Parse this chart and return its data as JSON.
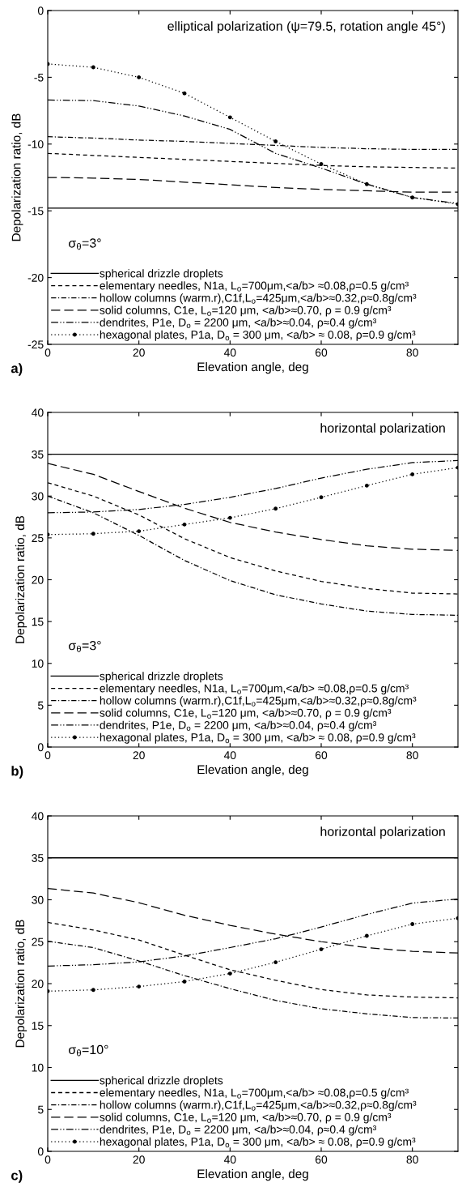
{
  "chart_data": [
    {
      "type": "line",
      "xlabel": "Elevation angle, deg",
      "ylabel": "Depolarization ratio, dB",
      "xlim": [
        0,
        90
      ],
      "ylim": [
        -25,
        0
      ],
      "xticks": [
        0,
        20,
        40,
        60,
        80
      ],
      "yticks": [
        -25,
        -20,
        -15,
        -10,
        -5,
        0
      ],
      "grid": false,
      "legend": "bottom left",
      "annotations": [
        "elliptical polarization (ψ=79.5, rotation angle 45°)",
        "σ$_{θ}$=3°",
        "a)"
      ],
      "x": [
        0,
        10,
        20,
        30,
        40,
        50,
        60,
        70,
        80,
        90
      ],
      "series": [
        {
          "name": "spherical drizzle droplets",
          "color": "#000000",
          "line_style": "solid",
          "marker": "none",
          "values": [
            -14.8,
            -14.8,
            -14.8,
            -14.8,
            -14.8,
            -14.8,
            -14.8,
            -14.8,
            -14.8,
            -14.8
          ]
        },
        {
          "name": "elementary needles, N1a, L$_{o}$=700μm,<a/b> ≈0.08,ρ=0.5 g/cm³",
          "color": "#000000",
          "line_style": "dashed",
          "marker": "none",
          "values": [
            -10.7,
            -10.85,
            -11.0,
            -11.15,
            -11.3,
            -11.45,
            -11.6,
            -11.7,
            -11.75,
            -11.8
          ]
        },
        {
          "name": "hollow columns (warm.r),C1f,L$_{o}$=425μm,<a/b>≈0.32,ρ≈0.8g/cm³",
          "color": "#000000",
          "line_style": "dashdot",
          "marker": "none",
          "values": [
            -9.45,
            -9.55,
            -9.7,
            -9.8,
            -9.95,
            -10.1,
            -10.25,
            -10.35,
            -10.4,
            -10.4
          ]
        },
        {
          "name": "solid columns, C1e, L$_{o}$=120 μm, <a/b>≈0.70, ρ = 0.9 g/cm³",
          "color": "#000000",
          "line_style": "longdash",
          "marker": "none",
          "values": [
            -12.5,
            -12.55,
            -12.65,
            -12.85,
            -13.05,
            -13.25,
            -13.4,
            -13.5,
            -13.6,
            -13.6
          ]
        },
        {
          "name": "dendrites, P1e, D$_{o}$ = 2200 μm, <a/b>≈0.04, ρ≈0.4 g/cm³",
          "color": "#000000",
          "line_style": "dashdotdot",
          "marker": "none",
          "values": [
            -6.7,
            -6.75,
            -7.15,
            -7.9,
            -8.9,
            -10.7,
            -11.8,
            -13.0,
            -14.0,
            -14.45
          ]
        },
        {
          "name": "hexagonal plates, P1a, D$_{o}$ = 300 μm, <a/b> ≈ 0.08, ρ=0.9 g/cm³",
          "color": "#000000",
          "line_style": "dotted",
          "marker": "circle",
          "values": [
            -4.0,
            -4.25,
            -5.0,
            -6.2,
            -8.0,
            -9.8,
            -11.5,
            -13.0,
            -14.0,
            -14.5
          ]
        }
      ]
    },
    {
      "type": "line",
      "xlabel": "Elevation angle, deg",
      "ylabel": "Depolarization ratio, dB",
      "xlim": [
        0,
        90
      ],
      "ylim": [
        0,
        40
      ],
      "xticks": [
        0,
        20,
        40,
        60,
        80
      ],
      "yticks": [
        0,
        5,
        10,
        15,
        20,
        25,
        30,
        35,
        40
      ],
      "grid": false,
      "legend": "bottom left",
      "annotations": [
        "horizontal polarization",
        "σ$_{θ}$=3°",
        "b)"
      ],
      "x": [
        0,
        10,
        20,
        30,
        40,
        50,
        60,
        70,
        80,
        90
      ],
      "series": [
        {
          "name": "spherical drizzle droplets",
          "color": "#000000",
          "line_style": "solid",
          "marker": "none",
          "values": [
            35,
            35,
            35,
            35,
            35,
            35,
            35,
            35,
            35,
            35
          ]
        },
        {
          "name": "elementary needles, N1a, L$_{o}$=700μm,<a/b> ≈0.08,ρ=0.5 g/cm³",
          "color": "#000000",
          "line_style": "dashed",
          "marker": "none",
          "values": [
            31.6,
            30.0,
            27.75,
            24.9,
            22.65,
            21.05,
            19.8,
            18.95,
            18.4,
            18.3
          ]
        },
        {
          "name": "hollow columns (warm.r),C1f,L$_{o}$=425μm,<a/b>≈0.32,ρ≈0.8g/cm³",
          "color": "#000000",
          "line_style": "dashdot",
          "marker": "none",
          "values": [
            30.0,
            28.0,
            25.3,
            22.3,
            19.9,
            18.2,
            17.1,
            16.25,
            15.85,
            15.75
          ]
        },
        {
          "name": "solid columns, C1e, L$_{o}$=120 μm, <a/b>≈0.70, ρ = 0.9 g/cm³",
          "color": "#000000",
          "line_style": "longdash",
          "marker": "none",
          "values": [
            33.9,
            32.6,
            30.55,
            28.55,
            26.85,
            25.7,
            24.8,
            24.05,
            23.65,
            23.5
          ]
        },
        {
          "name": "dendrites, P1e, D$_{o}$ = 2200 μm, <a/b>≈0.04, ρ≈0.4 g/cm³",
          "color": "#000000",
          "line_style": "dashdotdot",
          "marker": "none",
          "values": [
            28.0,
            28.1,
            28.4,
            29.0,
            29.85,
            30.9,
            32.15,
            33.2,
            34.0,
            34.25
          ]
        },
        {
          "name": "hexagonal plates, P1a, D$_{o}$ = 300 μm, <a/b> ≈ 0.08, ρ=0.9 g/cm³",
          "color": "#000000",
          "line_style": "dotted",
          "marker": "circle",
          "values": [
            25.4,
            25.5,
            25.8,
            26.6,
            27.4,
            28.5,
            29.85,
            31.25,
            32.6,
            33.4
          ]
        }
      ]
    },
    {
      "type": "line",
      "xlabel": "Elevation angle, deg",
      "ylabel": "Depolarization ratio, dB",
      "xlim": [
        0,
        90
      ],
      "ylim": [
        0,
        40
      ],
      "xticks": [
        0,
        20,
        40,
        60,
        80
      ],
      "yticks": [
        0,
        5,
        10,
        15,
        20,
        25,
        30,
        35,
        40
      ],
      "grid": false,
      "legend": "bottom left",
      "annotations": [
        "horizontal polarization",
        "σ$_{θ}$=10°",
        "c)"
      ],
      "x": [
        0,
        10,
        20,
        30,
        40,
        50,
        60,
        70,
        80,
        90
      ],
      "series": [
        {
          "name": "spherical drizzle droplets",
          "color": "#000000",
          "line_style": "solid",
          "marker": "none",
          "values": [
            35,
            35,
            35,
            35,
            35,
            35,
            35,
            35,
            35,
            35
          ]
        },
        {
          "name": "elementary needles, N1a, L$_{o}$=700μm,<a/b> ≈0.08,ρ=0.5 g/cm³",
          "color": "#000000",
          "line_style": "dashed",
          "marker": "none",
          "values": [
            27.3,
            26.4,
            25.2,
            23.4,
            21.65,
            20.4,
            19.3,
            18.65,
            18.4,
            18.3
          ]
        },
        {
          "name": "hollow columns (warm.r),C1f,L$_{o}$=425μm,<a/b>≈0.32,ρ≈0.8g/cm³",
          "color": "#000000",
          "line_style": "dashdot",
          "marker": "none",
          "values": [
            25.05,
            24.3,
            22.7,
            20.95,
            19.4,
            18.0,
            17.0,
            16.4,
            15.95,
            15.9
          ]
        },
        {
          "name": "solid columns, C1e, L$_{o}$=120 μm, <a/b>≈0.70, ρ = 0.9 g/cm³",
          "color": "#000000",
          "line_style": "longdash",
          "marker": "none",
          "values": [
            31.35,
            30.8,
            29.65,
            28.15,
            26.95,
            25.9,
            25.0,
            24.3,
            23.85,
            23.65
          ]
        },
        {
          "name": "dendrites, P1e, D$_{o}$ = 2200 μm, <a/b>≈0.04, ρ≈0.4 g/cm³",
          "color": "#000000",
          "line_style": "dashdotdot",
          "marker": "none",
          "values": [
            22.1,
            22.25,
            22.6,
            23.3,
            24.3,
            25.35,
            26.75,
            28.25,
            29.6,
            30.1
          ]
        },
        {
          "name": "hexagonal plates, P1a, D$_{o}$ = 300 μm, <a/b> ≈ 0.08, ρ=0.9 g/cm³",
          "color": "#000000",
          "line_style": "dotted",
          "marker": "circle",
          "values": [
            19.1,
            19.25,
            19.65,
            20.25,
            21.2,
            22.55,
            24.1,
            25.7,
            27.1,
            27.8
          ]
        }
      ]
    }
  ]
}
